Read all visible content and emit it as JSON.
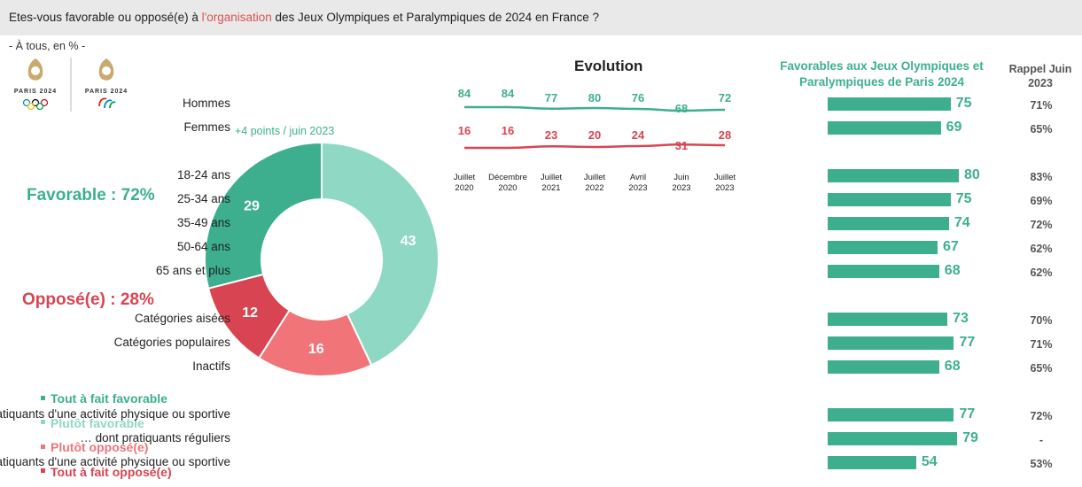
{
  "header": {
    "question_before": "Etes-vous favorable ou opposé(e) à ",
    "question_highlight": "l'organisation",
    "question_after": " des Jeux Olympiques et Paralympiques de 2024 en France ?"
  },
  "subtitle": "- À tous, en % -",
  "logos": {
    "left_text": "PARIS 2024",
    "right_text": "PARIS 2024"
  },
  "summary": {
    "favorable": "Favorable : 72%",
    "oppose": "Opposé(e) : 28%",
    "points_note": "+4 points / juin 2023"
  },
  "colors": {
    "tout_favorable": "#3daf8f",
    "plutot_favorable": "#8fd8c4",
    "plutot_oppose": "#f07478",
    "tout_oppose": "#d94452"
  },
  "legend": [
    "Tout à fait favorable",
    "Plutôt favorable",
    "Plutôt opposé(e)",
    "Tout à fait opposé(e)"
  ],
  "chart_data": [
    {
      "type": "pie",
      "categories": [
        "Tout à fait favorable",
        "Plutôt favorable",
        "Plutôt opposé(e)",
        "Tout à fait opposé(e)"
      ],
      "values": [
        29,
        43,
        16,
        12
      ],
      "title": ""
    },
    {
      "type": "line",
      "title": "Evolution",
      "categories": [
        [
          "Juillet",
          "2020"
        ],
        [
          "Décembre",
          "2020"
        ],
        [
          "Juillet",
          "2021"
        ],
        [
          "Juillet",
          "2022"
        ],
        [
          "Avril",
          "2023"
        ],
        [
          "Juin",
          "2023"
        ],
        [
          "Juillet",
          "2023"
        ]
      ],
      "series": [
        {
          "values": [
            84,
            84,
            77,
            80,
            76,
            68,
            72
          ]
        },
        {
          "values": [
            16,
            16,
            23,
            20,
            24,
            31,
            28
          ]
        }
      ]
    },
    {
      "type": "bar",
      "title": "Favorables aux Jeux Olympiques et Paralympiques de Paris 2024",
      "recall_title": "Rappel Juin 2023",
      "categories": [
        "Hommes",
        "Femmes",
        "18-24 ans",
        "25-34 ans",
        "35-49 ans",
        "50-64 ans",
        "65 ans et plus",
        "Catégories aisées",
        "Catégories populaires",
        "Inactifs",
        "Pratiquants d'une activité physique ou sportive",
        "… dont pratiquants réguliers",
        "Non-pratiquants d'une activité physique ou sportive"
      ],
      "values": [
        75,
        69,
        80,
        75,
        74,
        67,
        68,
        73,
        77,
        68,
        77,
        79,
        54
      ],
      "recall": [
        "71%",
        "65%",
        "83%",
        "69%",
        "72%",
        "62%",
        "62%",
        "70%",
        "71%",
        "65%",
        "72%",
        "-",
        "53%"
      ]
    }
  ]
}
